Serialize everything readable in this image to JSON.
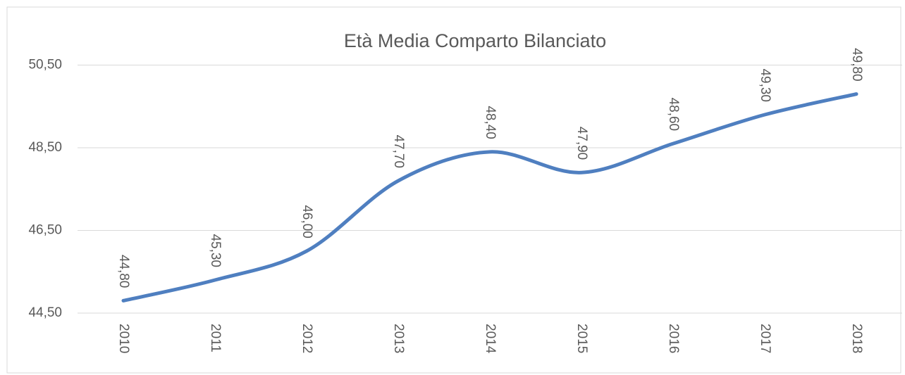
{
  "chart_data": {
    "type": "line",
    "title": "Età Media Comparto Bilanciato",
    "categories": [
      "2010",
      "2011",
      "2012",
      "2013",
      "2014",
      "2015",
      "2016",
      "2017",
      "2018"
    ],
    "series": [
      {
        "color": "#4f7fc0",
        "values": [
          44.8,
          45.3,
          46.0,
          47.7,
          48.4,
          47.9,
          48.6,
          49.3,
          49.8
        ],
        "value_labels": [
          "44,80",
          "45,30",
          "46,00",
          "47,70",
          "48,40",
          "47,90",
          "48,60",
          "49,30",
          "49,80"
        ]
      }
    ],
    "ylim": [
      44.5,
      51.5
    ],
    "yticks": [
      {
        "value": 44.5,
        "label": "44,50"
      },
      {
        "value": 46.5,
        "label": "46,50"
      },
      {
        "value": 48.5,
        "label": "48,50"
      },
      {
        "value": 50.5,
        "label": "50,50"
      }
    ],
    "grid": true,
    "smooth": true
  }
}
